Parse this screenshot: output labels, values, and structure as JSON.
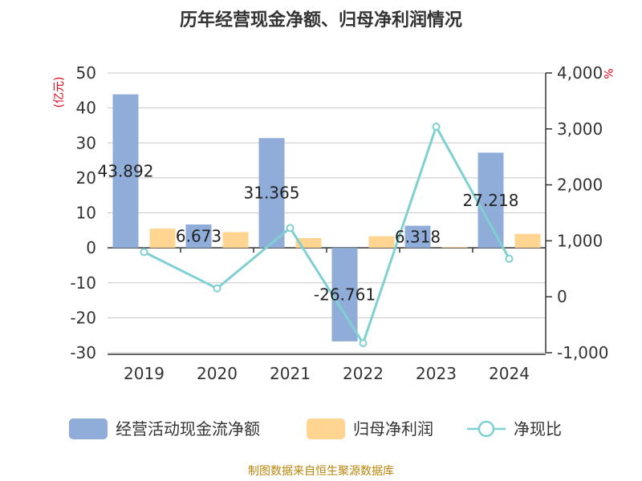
{
  "chart_data": {
    "type": "bar",
    "title": "历年经营现金净额、归母净利润情况",
    "categories": [
      "2019",
      "2020",
      "2021",
      "2022",
      "2023",
      "2024"
    ],
    "y_left": {
      "unit": "(亿元)",
      "ylim": [
        -30,
        50
      ],
      "ticks": [
        50,
        40,
        30,
        20,
        10,
        0,
        -10,
        -20,
        -30
      ],
      "tick_labels": [
        "50",
        "40",
        "30",
        "20",
        "10",
        "0",
        "-10",
        "-20",
        "-30"
      ]
    },
    "y_right": {
      "unit": "%",
      "ylim": [
        -1000,
        4000
      ],
      "ticks": [
        4000,
        3000,
        2000,
        1000,
        0,
        -1000
      ],
      "tick_labels": [
        "4,000",
        "3,000",
        "2,000",
        "1,000",
        "0",
        "-1,000"
      ]
    },
    "series": [
      {
        "name": "经营活动现金流净额",
        "type": "bar",
        "axis": "left",
        "color": "#8fadd8",
        "values": [
          43.892,
          6.673,
          31.365,
          -26.761,
          6.318,
          27.218
        ],
        "data_labels": [
          "43.892",
          "6.673",
          "31.365",
          "-26.761",
          "6.318",
          "27.218"
        ]
      },
      {
        "name": "归母净利润",
        "type": "bar",
        "axis": "left",
        "color": "#ffd591",
        "values": [
          5.5,
          4.5,
          2.8,
          3.3,
          0.2,
          4.0
        ]
      },
      {
        "name": "净现比",
        "type": "line",
        "axis": "right",
        "color": "#7fd0d2",
        "values": [
          800,
          150,
          1230,
          -830,
          3040,
          680
        ]
      }
    ],
    "grid": true,
    "legend_position": "bottom"
  },
  "source": "制图数据来自恒生聚源数据库"
}
